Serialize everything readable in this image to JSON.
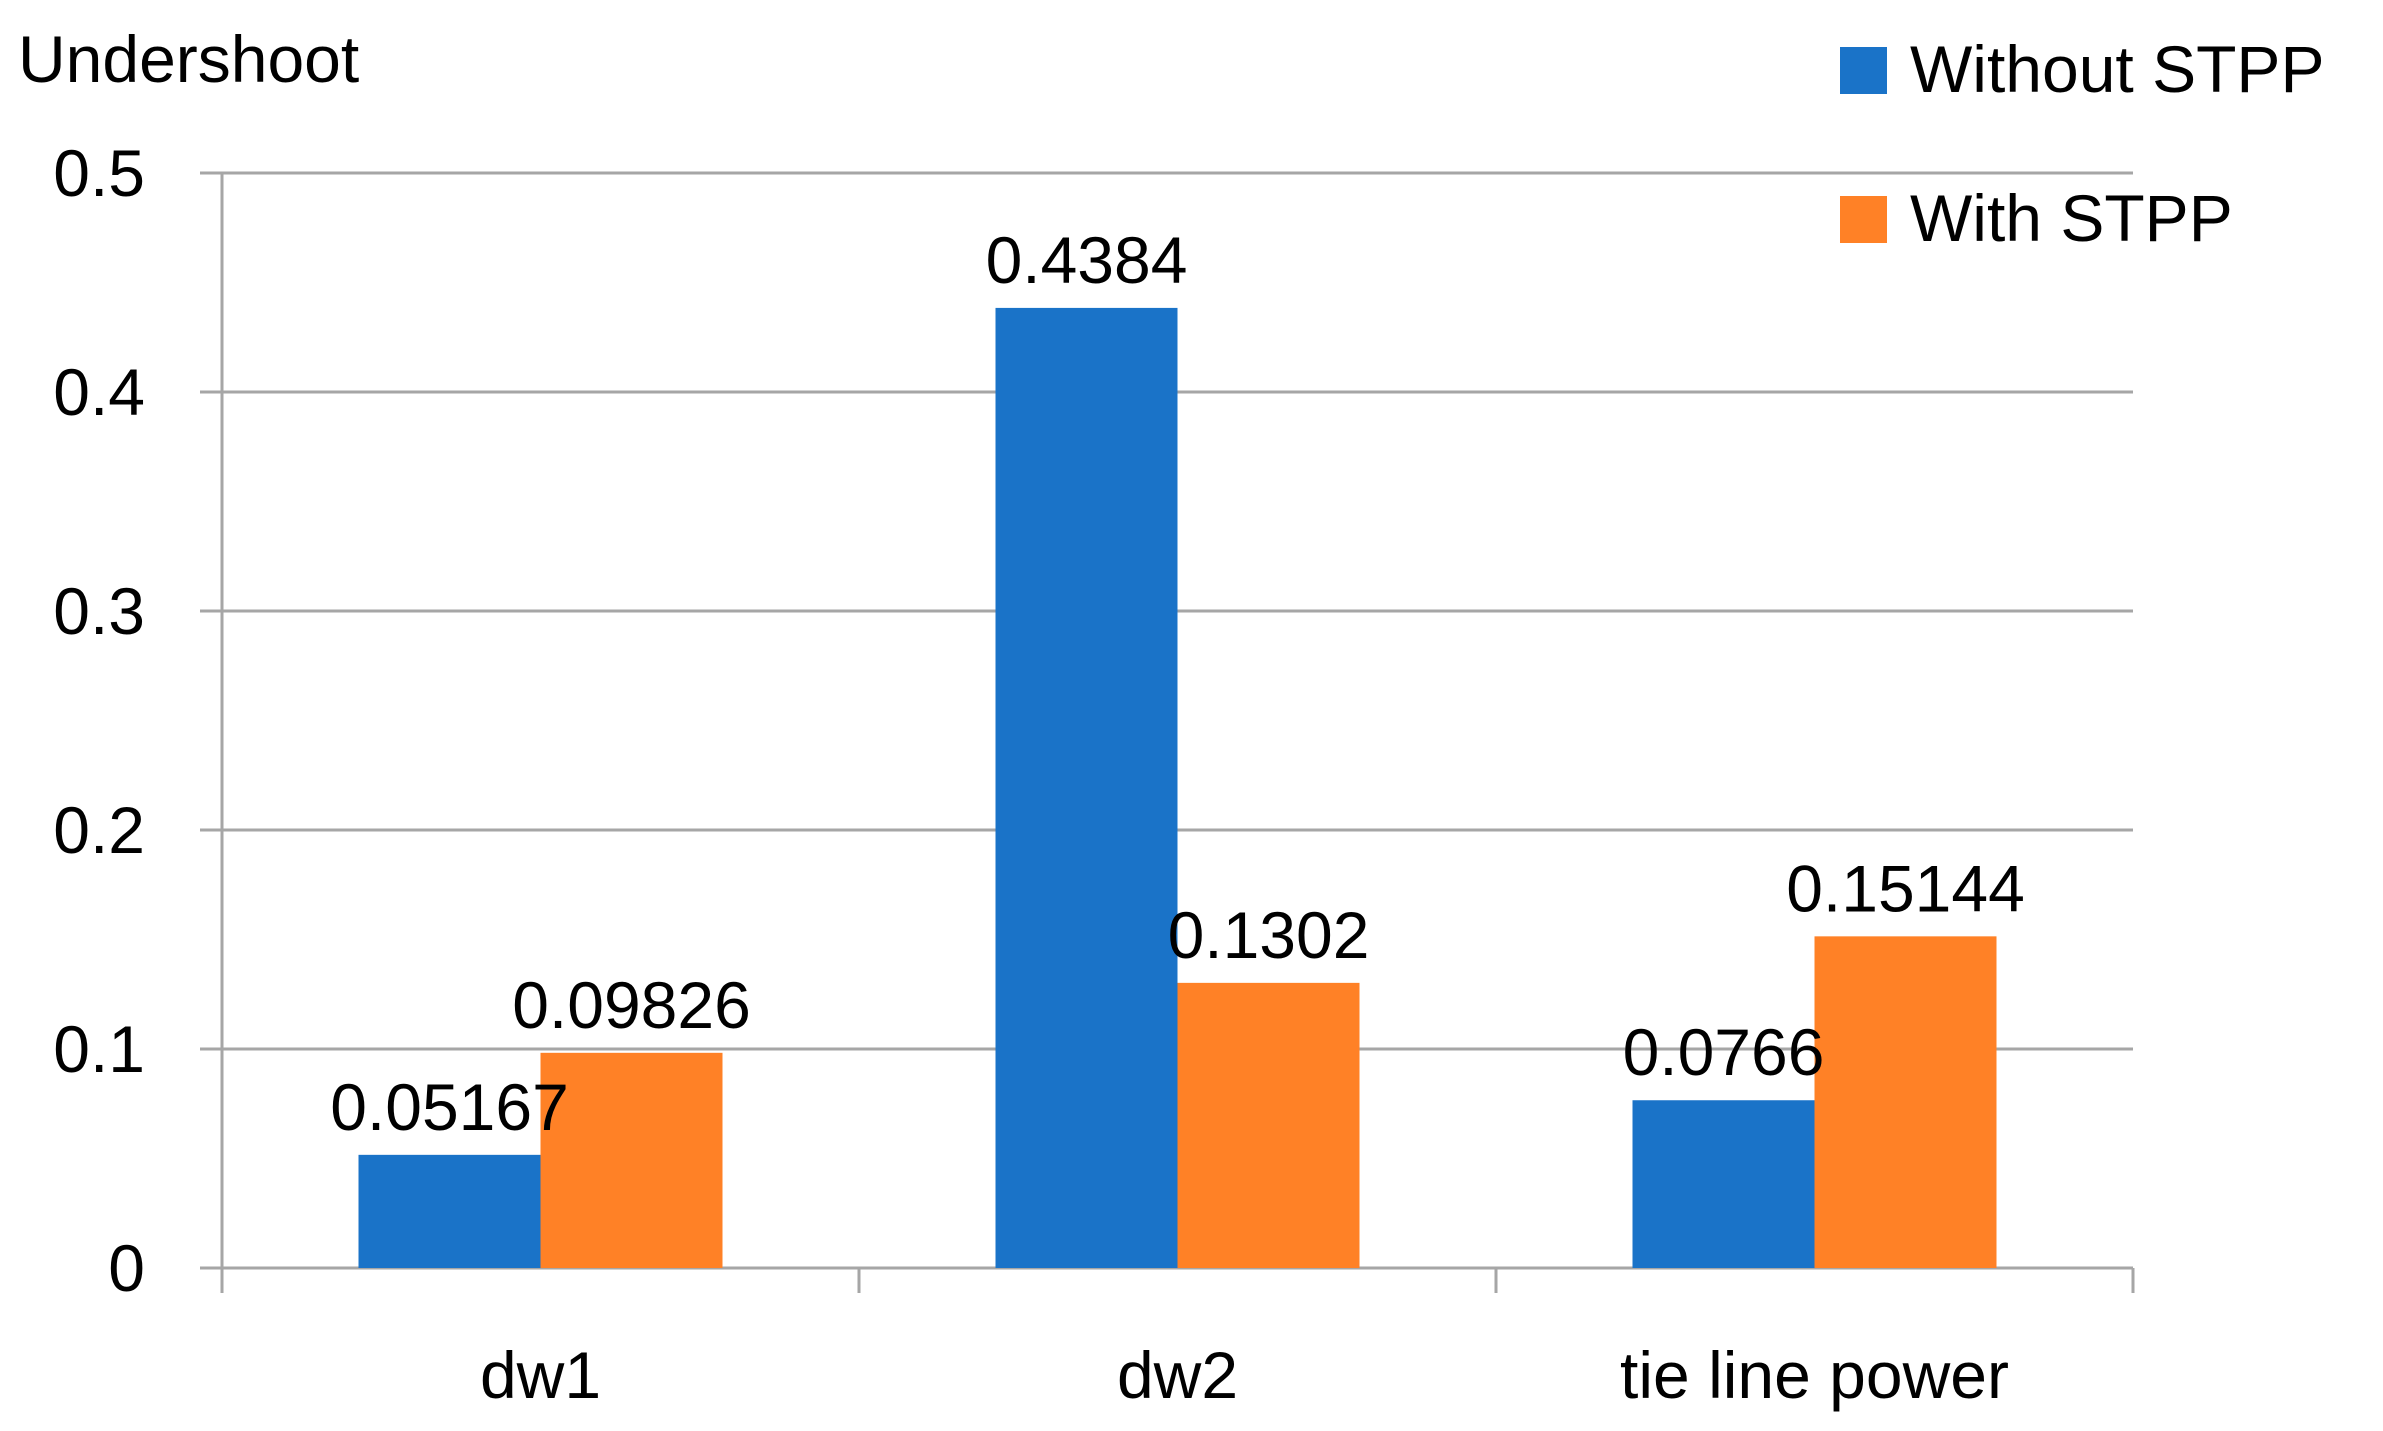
{
  "chart_data": {
    "type": "bar",
    "title": "",
    "ylabel": "Undershoot",
    "xlabel": "",
    "categories": [
      "dw1",
      "dw2",
      "tie line power"
    ],
    "series": [
      {
        "name": "Without STPP",
        "color": "#1a73c8",
        "values": [
          0.05167,
          0.4384,
          0.0766
        ],
        "labels": [
          "0.05167",
          "0.4384",
          "0.0766"
        ]
      },
      {
        "name": "With STPP",
        "color": "#ff8126",
        "values": [
          0.09826,
          0.1302,
          0.15144
        ],
        "labels": [
          "0.09826",
          "0.1302",
          "0.15144"
        ]
      }
    ],
    "ylim": [
      0,
      0.5
    ],
    "yticks": [
      "0",
      "0.1",
      "0.2",
      "0.3",
      "0.4",
      "0.5"
    ],
    "grid": true,
    "legend_position": "top-right",
    "gridline_color": "#a6a6a6"
  }
}
